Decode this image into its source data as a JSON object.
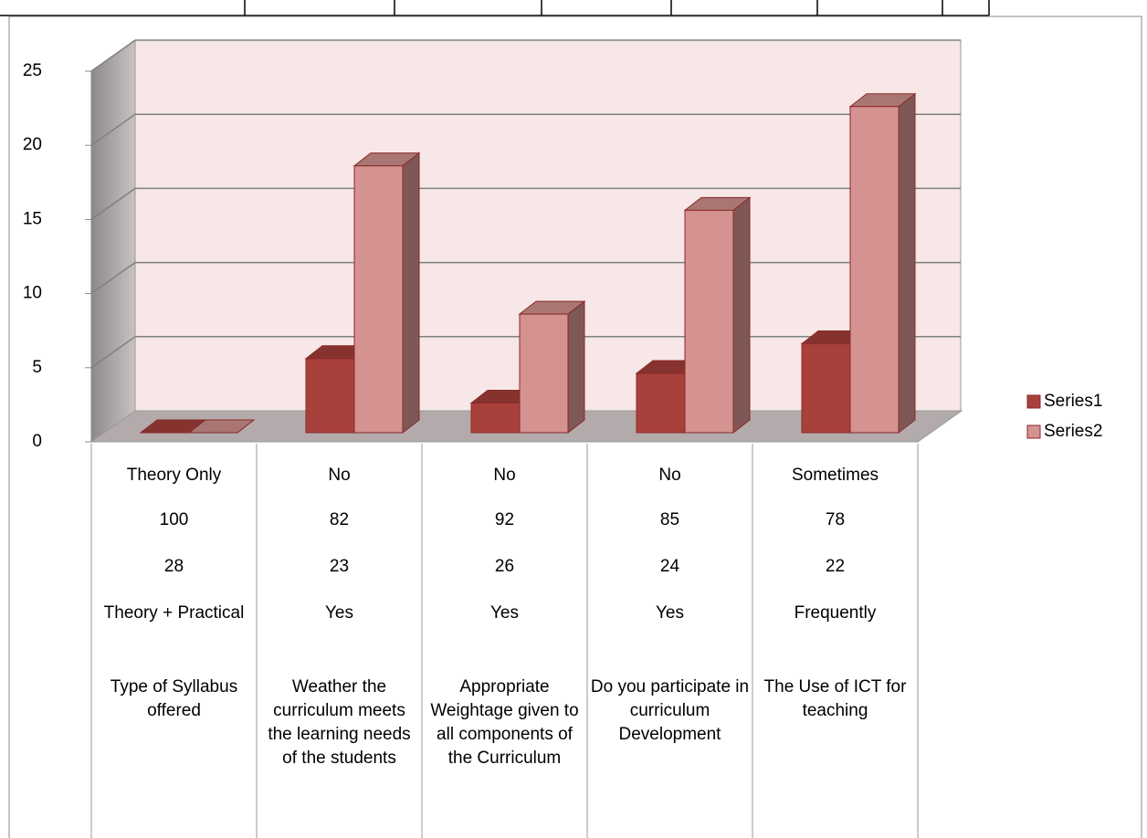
{
  "chart_data": {
    "type": "bar3d",
    "categories": [
      [
        "Theory Only",
        "No",
        "No",
        "No",
        "Sometimes"
      ],
      [
        "100",
        "82",
        "92",
        "85",
        "78"
      ],
      [
        "28",
        "23",
        "26",
        "24",
        "22"
      ],
      [
        "Theory + Practical",
        "Yes",
        "Yes",
        "Yes",
        "Frequently"
      ],
      [
        "Type of Syllabus offered",
        "Weather the curriculum meets the learning needs of the students",
        "Appropriate Weightage given to all components of the Curriculum",
        "Do you participate in curriculum Development",
        "The Use of ICT for teaching"
      ]
    ],
    "series": [
      {
        "name": "Series1",
        "color": "#a8403c",
        "values": [
          0,
          5,
          2,
          4,
          6
        ]
      },
      {
        "name": "Series2",
        "color": "#d49390",
        "values": [
          0,
          18,
          8,
          15,
          22
        ]
      }
    ],
    "ylim": [
      0,
      25
    ],
    "yticks": [
      0,
      5,
      10,
      15,
      20,
      25
    ],
    "grid": true,
    "legend": "right"
  }
}
